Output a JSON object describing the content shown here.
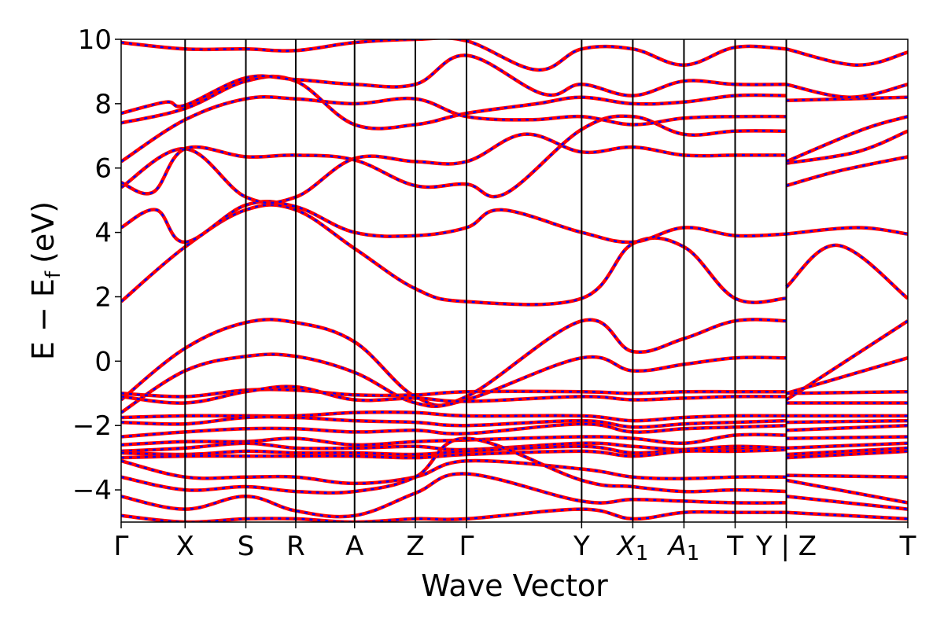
{
  "chart_data": {
    "type": "line",
    "xlabel": "Wave Vector",
    "ylabel": "E − E",
    "ylabel_sub": "f",
    "ylabel_unit": "(eV)",
    "ylim": [
      -5,
      10
    ],
    "yticks": [
      "−4",
      "−2",
      "0",
      "2",
      "4",
      "6",
      "8",
      "10"
    ],
    "ytick_values": [
      -4,
      -2,
      0,
      2,
      4,
      6,
      8,
      10
    ],
    "xlim": [
      0,
      12.3
    ],
    "high_symmetry_points": [
      {
        "label": "Γ",
        "x": 0.0
      },
      {
        "label": "X",
        "x": 1.0
      },
      {
        "label": "S",
        "x": 1.95
      },
      {
        "label": "R",
        "x": 2.73
      },
      {
        "label": "A",
        "x": 3.65
      },
      {
        "label": "Z",
        "x": 4.6
      },
      {
        "label": "Γ",
        "x": 5.4
      },
      {
        "label": "Y",
        "x": 7.2
      },
      {
        "label": "X1",
        "x": 8.0
      },
      {
        "label": "A1",
        "x": 8.8
      },
      {
        "label": "T",
        "x": 9.6
      },
      {
        "label": "Y | Z",
        "x": 10.4
      },
      {
        "label": "T",
        "x": 12.3
      }
    ],
    "grid": false,
    "line_colors": {
      "primary": "#ff0000",
      "dash": "#0000ff"
    },
    "bands": [
      {
        "x": [
          0,
          1,
          1.95,
          2.73,
          3.65,
          4.6,
          5.4,
          7.2,
          8.0,
          8.8,
          9.6,
          10.4
        ],
        "y": [
          1.85,
          3.55,
          4.7,
          4.7,
          3.5,
          2.25,
          1.85,
          1.95,
          3.65,
          3.55,
          1.95,
          1.95
        ]
      },
      {
        "x": [
          10.4,
          11.2,
          12.3
        ],
        "y": [
          2.3,
          3.6,
          1.95
        ]
      },
      {
        "x": [
          0,
          0.55,
          1,
          1.95,
          2.73,
          3.65,
          4.6,
          5.4,
          5.95,
          7.2,
          8.0,
          8.8,
          9.6,
          10.4
        ],
        "y": [
          4.15,
          4.7,
          3.7,
          4.85,
          4.8,
          4.0,
          3.9,
          4.15,
          4.7,
          4.0,
          3.7,
          4.15,
          3.9,
          3.95
        ]
      },
      {
        "x": [
          10.4,
          11.5,
          12.3
        ],
        "y": [
          3.95,
          4.15,
          3.95
        ]
      },
      {
        "x": [
          0,
          1,
          1.95,
          2.73,
          3.65,
          4.6,
          5.4,
          6.3,
          7.2,
          8.0,
          8.8,
          9.6,
          10.4
        ],
        "y": [
          5.4,
          6.6,
          5.1,
          5.1,
          6.3,
          6.2,
          6.2,
          7.05,
          6.5,
          6.65,
          6.4,
          6.4,
          6.4
        ]
      },
      {
        "x": [
          0,
          0.5,
          1,
          1.95,
          2.73,
          3.65,
          4.6,
          5.4,
          6.0,
          7.2,
          8.0,
          8.8,
          9.6,
          10.4
        ],
        "y": [
          5.55,
          5.25,
          6.6,
          6.35,
          6.4,
          6.25,
          5.45,
          5.5,
          5.2,
          7.2,
          7.6,
          7.05,
          7.15,
          7.15
        ]
      },
      {
        "x": [
          0,
          1,
          1.95,
          2.73,
          3.65,
          4.6,
          5.4,
          6.4,
          7.2,
          8.0,
          8.8,
          9.6,
          10.4
        ],
        "y": [
          6.2,
          7.5,
          8.15,
          8.15,
          8.0,
          8.15,
          7.6,
          7.5,
          7.6,
          7.35,
          7.55,
          7.6,
          7.6
        ]
      },
      {
        "x": [
          0,
          1,
          1.95,
          2.73,
          3.65,
          4.6,
          5.4,
          6.5,
          7.2,
          8.0,
          8.8,
          9.6,
          10.4
        ],
        "y": [
          7.4,
          7.85,
          8.7,
          8.7,
          7.35,
          7.35,
          7.7,
          8.0,
          8.2,
          8.0,
          8.05,
          8.25,
          8.25
        ]
      },
      {
        "x": [
          0,
          0.7,
          1,
          1.95,
          2.73,
          3.65,
          4.6,
          5.4,
          6.6,
          7.2,
          8.0,
          8.8,
          9.6,
          10.4
        ],
        "y": [
          7.7,
          8.05,
          7.95,
          8.8,
          8.75,
          8.6,
          8.6,
          9.5,
          8.3,
          8.6,
          8.25,
          8.7,
          8.6,
          8.6
        ]
      },
      {
        "x": [
          0,
          1,
          1.95,
          2.73,
          3.65,
          4.6,
          5.4,
          6.5,
          7.2,
          8.0,
          8.8,
          9.6,
          10.4
        ],
        "y": [
          9.9,
          9.7,
          9.7,
          9.65,
          9.9,
          10.0,
          9.95,
          9.05,
          9.7,
          9.7,
          9.2,
          9.75,
          9.7
        ]
      },
      {
        "x": [
          10.4,
          11.2,
          12.3
        ],
        "y": [
          5.45,
          5.9,
          6.35
        ]
      },
      {
        "x": [
          10.4,
          11.5,
          12.3
        ],
        "y": [
          6.15,
          6.5,
          7.15
        ]
      },
      {
        "x": [
          10.4,
          11.6,
          12.3
        ],
        "y": [
          6.2,
          7.2,
          7.6
        ]
      },
      {
        "x": [
          10.4,
          12.3
        ],
        "y": [
          8.1,
          8.2
        ]
      },
      {
        "x": [
          10.4,
          11.4,
          12.3
        ],
        "y": [
          8.6,
          8.2,
          8.6
        ]
      },
      {
        "x": [
          10.4,
          11.5,
          12.3
        ],
        "y": [
          9.7,
          9.2,
          9.6
        ]
      },
      {
        "x": [
          0,
          1,
          1.95,
          2.73,
          3.65,
          4.6,
          5.4,
          7.2,
          8.0,
          8.8,
          9.6,
          10.4
        ],
        "y": [
          -1.2,
          0.4,
          1.2,
          1.2,
          0.6,
          -1.1,
          -1.1,
          1.25,
          0.3,
          0.7,
          1.25,
          1.25
        ]
      },
      {
        "x": [
          10.4,
          12.3
        ],
        "y": [
          -1.2,
          1.25
        ]
      },
      {
        "x": [
          0,
          1,
          1.95,
          2.73,
          3.65,
          4.6,
          5.4,
          7.2,
          8.0,
          8.8,
          9.6,
          10.4
        ],
        "y": [
          -1.6,
          -0.3,
          0.15,
          0.15,
          -0.35,
          -1.3,
          -1.2,
          0.1,
          -0.3,
          -0.1,
          0.1,
          0.1
        ]
      },
      {
        "x": [
          10.4,
          12.3
        ],
        "y": [
          -1.0,
          0.1
        ]
      },
      {
        "x": [
          0,
          1,
          1.95,
          2.73,
          3.65,
          4.6,
          5.4,
          7.2,
          8.0,
          8.8,
          9.6,
          10.4
        ],
        "y": [
          -1.0,
          -1.1,
          -0.9,
          -0.9,
          -1.05,
          -1.05,
          -0.95,
          -0.95,
          -1.0,
          -0.95,
          -0.95,
          -0.95
        ]
      },
      {
        "x": [
          10.4,
          12.3
        ],
        "y": [
          -1.0,
          -0.95
        ]
      },
      {
        "x": [
          0,
          1,
          1.95,
          2.73,
          3.65,
          4.6,
          5.4,
          7.2,
          8.0,
          8.8,
          9.6,
          10.4
        ],
        "y": [
          -1.1,
          -1.3,
          -0.95,
          -0.8,
          -1.2,
          -1.15,
          -1.25,
          -1.1,
          -1.2,
          -1.15,
          -1.1,
          -1.1
        ]
      },
      {
        "x": [
          10.4,
          12.3
        ],
        "y": [
          -1.3,
          -1.3
        ]
      },
      {
        "x": [
          0,
          1,
          1.95,
          2.73,
          3.65,
          4.6,
          5.4,
          7.2,
          8.0,
          8.8,
          9.6,
          10.4
        ],
        "y": [
          -1.75,
          -1.7,
          -1.7,
          -1.7,
          -1.6,
          -1.6,
          -1.7,
          -1.7,
          -1.85,
          -1.75,
          -1.7,
          -1.7
        ]
      },
      {
        "x": [
          10.4,
          12.3
        ],
        "y": [
          -1.7,
          -1.7
        ]
      },
      {
        "x": [
          0,
          1,
          1.95,
          2.73,
          3.65,
          4.6,
          5.4,
          7.2,
          8.0,
          8.8,
          9.6,
          10.4
        ],
        "y": [
          -1.9,
          -1.95,
          -1.75,
          -1.75,
          -1.85,
          -1.9,
          -2.0,
          -1.85,
          -2.05,
          -1.95,
          -1.9,
          -1.85
        ]
      },
      {
        "x": [
          10.4,
          12.3
        ],
        "y": [
          -1.9,
          -1.85
        ]
      },
      {
        "x": [
          0,
          1,
          1.95,
          2.73,
          3.65,
          4.6,
          5.4,
          7.2,
          8.0,
          8.8,
          9.6,
          10.4
        ],
        "y": [
          -2.35,
          -2.2,
          -2.1,
          -2.1,
          -2.2,
          -2.15,
          -2.25,
          -1.95,
          -2.2,
          -2.1,
          -2.05,
          -2.0
        ]
      },
      {
        "x": [
          10.4,
          12.3
        ],
        "y": [
          -2.15,
          -2.0
        ]
      },
      {
        "x": [
          0,
          1,
          1.95,
          2.73,
          3.65,
          4.6,
          5.4,
          7.2,
          8.0,
          8.8,
          9.6,
          10.4
        ],
        "y": [
          -2.6,
          -2.5,
          -2.5,
          -2.4,
          -2.6,
          -2.5,
          -2.45,
          -2.35,
          -2.4,
          -2.55,
          -2.3,
          -2.3
        ]
      },
      {
        "x": [
          10.4,
          12.3
        ],
        "y": [
          -2.4,
          -2.35
        ]
      },
      {
        "x": [
          0,
          1,
          1.95,
          2.73,
          3.65,
          4.6,
          5.4,
          7.2,
          8.0,
          8.8,
          9.6,
          10.4
        ],
        "y": [
          -2.8,
          -2.7,
          -2.55,
          -2.7,
          -2.7,
          -2.65,
          -2.75,
          -2.55,
          -2.65,
          -2.75,
          -2.7,
          -2.7
        ]
      },
      {
        "x": [
          10.4,
          12.3
        ],
        "y": [
          -2.7,
          -2.55
        ]
      },
      {
        "x": [
          0,
          1,
          1.95,
          2.73,
          3.65,
          4.6,
          5.4,
          7.2,
          8.0,
          8.8,
          9.6,
          10.4
        ],
        "y": [
          -2.85,
          -2.9,
          -2.8,
          -2.85,
          -2.85,
          -2.9,
          -2.8,
          -2.65,
          -2.85,
          -2.75,
          -2.65,
          -2.7
        ]
      },
      {
        "x": [
          10.4,
          12.3
        ],
        "y": [
          -2.9,
          -2.7
        ]
      },
      {
        "x": [
          0,
          1,
          1.95,
          2.73,
          3.65,
          4.6,
          5.4,
          7.2,
          8.0,
          8.8,
          9.6,
          10.4
        ],
        "y": [
          -3.0,
          -2.95,
          -2.95,
          -2.95,
          -2.95,
          -3.0,
          -2.9,
          -2.8,
          -2.95,
          -2.8,
          -2.8,
          -2.75
        ]
      },
      {
        "x": [
          10.4,
          12.3
        ],
        "y": [
          -3.0,
          -2.8
        ]
      },
      {
        "x": [
          0,
          1,
          1.95,
          2.73,
          3.65,
          4.6,
          5.4,
          7.2,
          8.0,
          8.8,
          9.6,
          10.4
        ],
        "y": [
          -3.1,
          -3.6,
          -3.6,
          -3.6,
          -3.8,
          -3.6,
          -3.1,
          -3.35,
          -3.6,
          -3.65,
          -3.6,
          -3.6
        ]
      },
      {
        "x": [
          10.4,
          12.3
        ],
        "y": [
          -3.55,
          -3.6
        ]
      },
      {
        "x": [
          0,
          1,
          1.95,
          2.73,
          3.65,
          4.6,
          5.4,
          7.2,
          8.0,
          8.8,
          9.6,
          10.4
        ],
        "y": [
          -3.6,
          -4.0,
          -3.9,
          -4.05,
          -4.05,
          -3.6,
          -2.4,
          -3.7,
          -3.9,
          -4.05,
          -4.0,
          -4.05
        ]
      },
      {
        "x": [
          10.4,
          12.3
        ],
        "y": [
          -3.7,
          -4.4
        ]
      },
      {
        "x": [
          0,
          1,
          1.95,
          2.73,
          3.65,
          4.6,
          5.4,
          7.2,
          8.0,
          8.8,
          9.6,
          10.4
        ],
        "y": [
          -4.2,
          -4.6,
          -4.2,
          -4.65,
          -4.8,
          -4.1,
          -3.5,
          -4.35,
          -4.3,
          -4.35,
          -4.4,
          -4.4
        ]
      },
      {
        "x": [
          10.4,
          12.3
        ],
        "y": [
          -4.2,
          -4.6
        ]
      },
      {
        "x": [
          0,
          1,
          1.95,
          2.73,
          3.65,
          4.6,
          5.4,
          7.2,
          8.0,
          8.8,
          9.6,
          10.4
        ],
        "y": [
          -4.8,
          -5.0,
          -4.9,
          -4.9,
          -5.0,
          -4.9,
          -4.9,
          -4.6,
          -4.9,
          -4.7,
          -4.7,
          -4.7
        ]
      },
      {
        "x": [
          10.4,
          12.3
        ],
        "y": [
          -4.7,
          -4.9
        ]
      }
    ]
  }
}
